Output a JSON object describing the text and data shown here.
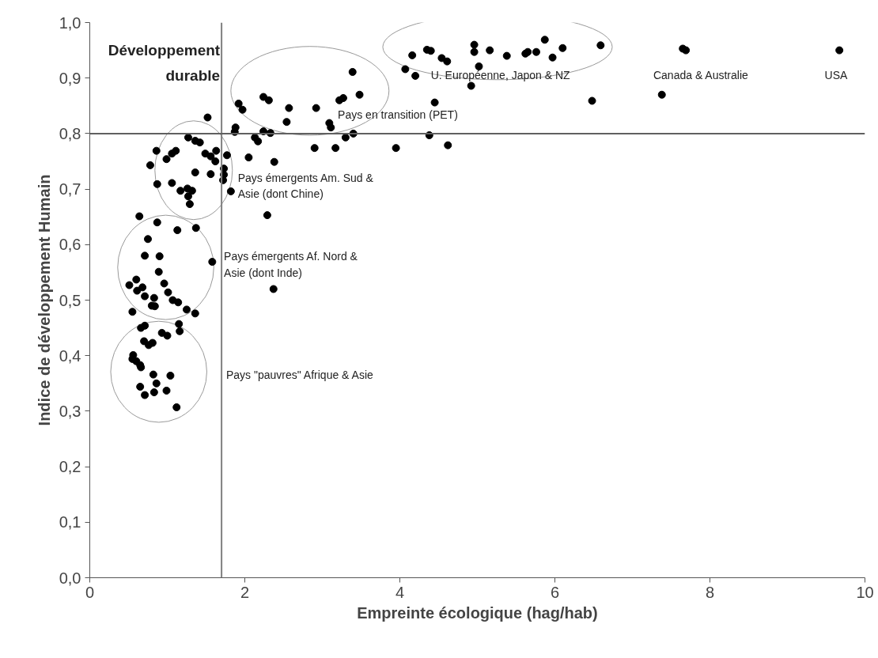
{
  "chart_data": {
    "type": "scatter",
    "xlabel": "Empreinte écologique (hag/hab)",
    "ylabel": "Indice de développement Humain",
    "xlim": [
      0,
      10
    ],
    "ylim": [
      0,
      1
    ],
    "xticks": [
      0,
      2,
      4,
      6,
      8,
      10
    ],
    "yticks": [
      {
        "value": 0,
        "label": "0,0"
      },
      {
        "value": 0.1,
        "label": "0,1"
      },
      {
        "value": 0.2,
        "label": "0,2"
      },
      {
        "value": 0.3,
        "label": "0,3"
      },
      {
        "value": 0.4,
        "label": "0,4"
      },
      {
        "value": 0.5,
        "label": "0,5"
      },
      {
        "value": 0.6,
        "label": "0,6"
      },
      {
        "value": 0.7,
        "label": "0,7"
      },
      {
        "value": 0.8,
        "label": "0,8"
      },
      {
        "value": 0.9,
        "label": "0,9"
      },
      {
        "value": 1,
        "label": "1,0"
      }
    ],
    "grid": false,
    "marker": "circle",
    "series": [
      {
        "color": "#000000",
        "x": [
          3.39,
          3.48,
          3.22,
          3.27,
          2.92,
          2.57,
          2.54,
          2.24,
          2.31,
          1.92,
          1.97,
          3.09,
          3.11,
          1.52,
          1.88,
          1.87,
          2.24,
          2.33,
          2.13,
          2.17,
          3.3,
          3.4,
          2.9,
          3.17,
          3.95,
          2.38,
          2.05,
          1.77,
          1.27,
          1.36,
          1.42,
          0.86,
          0.99,
          1.06,
          1.11,
          0.78,
          1.49,
          1.56,
          1.62,
          1.63,
          1.36,
          1.56,
          1.73,
          1.73,
          1.72,
          0.87,
          1.06,
          1.17,
          1.26,
          1.32,
          1.27,
          1.29,
          1.82,
          2.29,
          0.64,
          0.87,
          1.13,
          1.37,
          0.75,
          0.71,
          0.9,
          1.58,
          0.89,
          0.6,
          0.51,
          0.68,
          0.61,
          0.71,
          0.83,
          0.8,
          0.84,
          0.96,
          1.01,
          1.07,
          1.14,
          1.25,
          1.36,
          0.55,
          0.66,
          0.71,
          0.93,
          1.0,
          1.15,
          1.16,
          0.7,
          0.76,
          0.81,
          0.56,
          0.55,
          0.6,
          0.65,
          0.66,
          0.82,
          1.04,
          0.86,
          0.65,
          0.71,
          0.83,
          0.99,
          1.12,
          2.37,
          4.62,
          4.38,
          4.16,
          4.35,
          4.4,
          4.54,
          4.61,
          4.96,
          4.96,
          5.16,
          5.02,
          5.38,
          5.62,
          5.65,
          5.76,
          5.87,
          5.97,
          6.1,
          6.59,
          4.07,
          4.2,
          4.92,
          4.45,
          6.48,
          7.65,
          7.69,
          7.38,
          9.67
        ],
        "values": [
          0.911,
          0.87,
          0.86,
          0.864,
          0.846,
          0.846,
          0.821,
          0.866,
          0.86,
          0.854,
          0.843,
          0.819,
          0.811,
          0.829,
          0.811,
          0.803,
          0.804,
          0.801,
          0.793,
          0.786,
          0.793,
          0.8,
          0.774,
          0.774,
          0.774,
          0.749,
          0.757,
          0.761,
          0.793,
          0.787,
          0.784,
          0.769,
          0.754,
          0.764,
          0.769,
          0.743,
          0.764,
          0.759,
          0.75,
          0.769,
          0.73,
          0.727,
          0.737,
          0.726,
          0.716,
          0.709,
          0.711,
          0.697,
          0.701,
          0.697,
          0.687,
          0.673,
          0.696,
          0.653,
          0.651,
          0.64,
          0.626,
          0.63,
          0.61,
          0.58,
          0.579,
          0.569,
          0.551,
          0.537,
          0.527,
          0.523,
          0.517,
          0.507,
          0.504,
          0.49,
          0.489,
          0.53,
          0.514,
          0.5,
          0.496,
          0.483,
          0.476,
          0.479,
          0.45,
          0.454,
          0.441,
          0.436,
          0.457,
          0.444,
          0.426,
          0.419,
          0.423,
          0.401,
          0.394,
          0.39,
          0.383,
          0.379,
          0.366,
          0.364,
          0.35,
          0.344,
          0.329,
          0.334,
          0.337,
          0.307,
          0.52,
          0.779,
          0.797,
          0.941,
          0.951,
          0.949,
          0.936,
          0.93,
          0.96,
          0.947,
          0.95,
          0.921,
          0.94,
          0.944,
          0.947,
          0.947,
          0.969,
          0.937,
          0.954,
          0.959,
          0.916,
          0.904,
          0.886,
          0.856,
          0.859,
          0.953,
          0.95,
          0.87,
          0.95
        ]
      }
    ],
    "ref_lines": [
      {
        "axis": "x",
        "value": 1.7,
        "color": "#808080"
      },
      {
        "axis": "y",
        "value": 0.8,
        "color": "#606060"
      }
    ],
    "annotations": [
      "Développement\ndurable",
      "U. Européenne, Japon & NZ",
      "Canada & Australie",
      "USA",
      "Pays en transition (PET)",
      "Pays émergents Am. Sud &\nAsie (dont Chine)",
      "Pays émergents Af. Nord &\nAsie (dont Inde)",
      "Pays \"pauvres\" Afrique & Asie"
    ]
  }
}
